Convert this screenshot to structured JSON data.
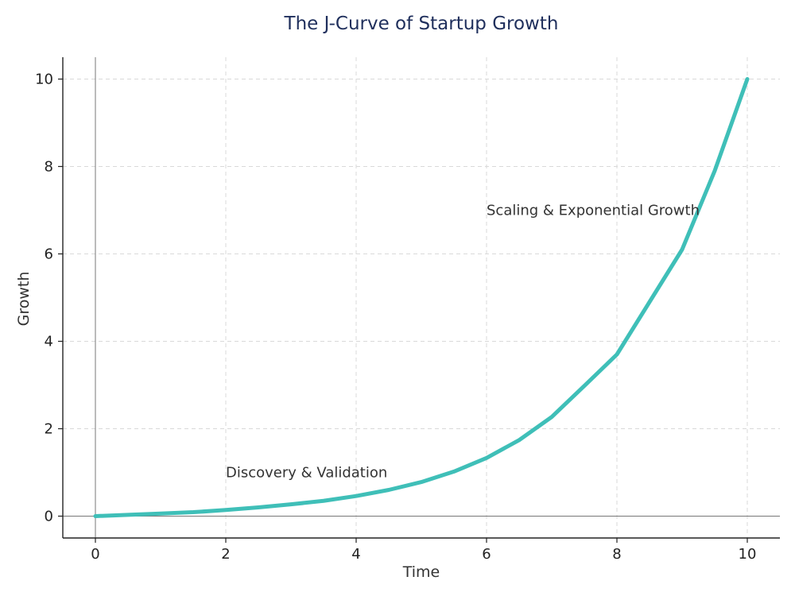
{
  "chart_data": {
    "type": "line",
    "title": "The J-Curve of Startup Growth",
    "xlabel": "Time",
    "ylabel": "Growth",
    "xlim": [
      -0.5,
      10.5
    ],
    "ylim": [
      -0.5,
      10.5
    ],
    "xticks": [
      "0",
      "2",
      "4",
      "6",
      "8",
      "10"
    ],
    "yticks": [
      "0",
      "2",
      "4",
      "6",
      "8",
      "10"
    ],
    "grid": true,
    "series": [
      {
        "color": "#3fbfb8",
        "x": [
          0,
          0.5,
          1,
          1.5,
          2,
          2.5,
          3,
          3.5,
          4,
          4.5,
          5,
          5.5,
          6,
          6.5,
          7,
          7.5,
          8,
          8.5,
          9,
          9.5,
          10
        ],
        "y": [
          0.0,
          0.03,
          0.06,
          0.09,
          0.14,
          0.2,
          0.27,
          0.35,
          0.46,
          0.6,
          0.78,
          1.02,
          1.33,
          1.74,
          2.27,
          2.98,
          3.7,
          4.9,
          6.1,
          7.9,
          10.0
        ]
      }
    ],
    "annotations": [
      {
        "text": "Discovery & Validation",
        "x": 2,
        "y": 1
      },
      {
        "text": "Scaling & Exponential Growth",
        "x": 6,
        "y": 7
      }
    ]
  }
}
